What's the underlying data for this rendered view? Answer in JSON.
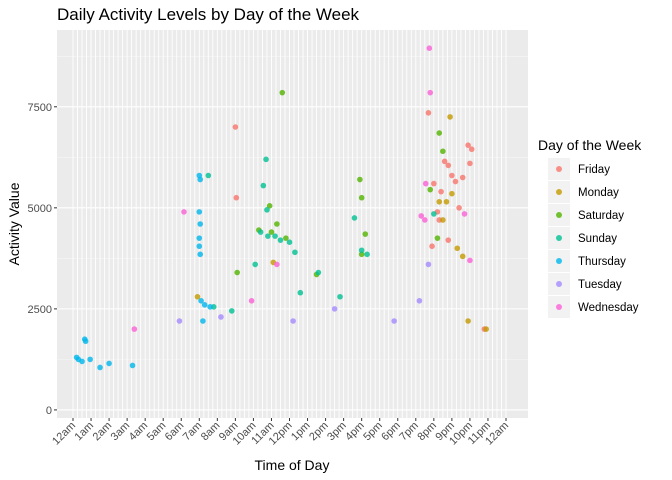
{
  "chart_data": {
    "type": "scatter",
    "title": "Daily Activity Levels by Day of the Week",
    "xlabel": "Time of Day",
    "ylabel": "Activity Value",
    "x_ticks": [
      "12am",
      "1am",
      "2am",
      "3am",
      "4am",
      "5am",
      "6am",
      "7am",
      "8am",
      "9am",
      "10am",
      "11am",
      "12pm",
      "1pm",
      "2pm",
      "3pm",
      "4pm",
      "5pm",
      "6pm",
      "7pm",
      "8pm",
      "9pm",
      "10pm",
      "11pm",
      "12am"
    ],
    "x_range_hours": [
      0,
      24
    ],
    "y_ticks": [
      0,
      2500,
      5000,
      7500
    ],
    "ylim": [
      -200,
      9400
    ],
    "grid": true,
    "legend": {
      "title": "Day of the Week",
      "position": "right",
      "entries": [
        "Friday",
        "Monday",
        "Saturday",
        "Sunday",
        "Thursday",
        "Tuesday",
        "Wednesday"
      ]
    },
    "colors": {
      "Friday": "#F8766D",
      "Monday": "#C49A00",
      "Saturday": "#53B400",
      "Sunday": "#00C094",
      "Thursday": "#00B6EB",
      "Tuesday": "#A58AFF",
      "Wednesday": "#FB61D7"
    },
    "series": [
      {
        "name": "Friday",
        "points": [
          [
            9.0,
            7000
          ],
          [
            9.05,
            5250
          ],
          [
            19.7,
            7350
          ],
          [
            20.0,
            5600
          ],
          [
            20.2,
            4900
          ],
          [
            20.4,
            5400
          ],
          [
            20.6,
            6150
          ],
          [
            20.8,
            6050
          ],
          [
            21.0,
            5800
          ],
          [
            21.2,
            5650
          ],
          [
            21.4,
            5000
          ],
          [
            21.6,
            5750
          ],
          [
            21.9,
            6550
          ],
          [
            22.0,
            6100
          ],
          [
            22.1,
            6450
          ],
          [
            20.3,
            4700
          ],
          [
            20.8,
            4200
          ],
          [
            19.9,
            4050
          ],
          [
            22.8,
            2000
          ]
        ]
      },
      {
        "name": "Monday",
        "points": [
          [
            20.9,
            7250
          ],
          [
            20.3,
            5150
          ],
          [
            20.7,
            5150
          ],
          [
            21.0,
            5350
          ],
          [
            21.3,
            4000
          ],
          [
            21.6,
            3800
          ],
          [
            20.5,
            4700
          ],
          [
            11.1,
            3650
          ],
          [
            6.9,
            2800
          ],
          [
            22.9,
            2000
          ],
          [
            21.9,
            2200
          ]
        ]
      },
      {
        "name": "Saturday",
        "points": [
          [
            11.6,
            7850
          ],
          [
            10.9,
            5050
          ],
          [
            11.3,
            4600
          ],
          [
            11.0,
            4400
          ],
          [
            15.9,
            5700
          ],
          [
            16.0,
            5250
          ],
          [
            20.3,
            6850
          ],
          [
            20.5,
            6400
          ],
          [
            20.2,
            4250
          ],
          [
            19.8,
            5450
          ],
          [
            10.3,
            4450
          ],
          [
            11.8,
            4250
          ],
          [
            16.2,
            4350
          ],
          [
            9.1,
            3400
          ],
          [
            13.5,
            3350
          ],
          [
            16.0,
            3850
          ]
        ]
      },
      {
        "name": "Sunday",
        "points": [
          [
            10.7,
            6200
          ],
          [
            10.55,
            5550
          ],
          [
            10.75,
            4950
          ],
          [
            10.8,
            4300
          ],
          [
            10.4,
            4400
          ],
          [
            11.2,
            4300
          ],
          [
            11.5,
            4200
          ],
          [
            12.0,
            4150
          ],
          [
            12.3,
            3900
          ],
          [
            10.1,
            3600
          ],
          [
            16.0,
            3950
          ],
          [
            16.3,
            3850
          ],
          [
            15.6,
            4750
          ],
          [
            20.0,
            4850
          ],
          [
            7.5,
            5800
          ],
          [
            13.6,
            3400
          ],
          [
            14.8,
            2800
          ],
          [
            7.8,
            2550
          ],
          [
            8.8,
            2450
          ],
          [
            12.6,
            2900
          ]
        ]
      },
      {
        "name": "Thursday",
        "points": [
          [
            7.0,
            5800
          ],
          [
            7.05,
            5700
          ],
          [
            7.0,
            4900
          ],
          [
            7.05,
            4600
          ],
          [
            7.0,
            4250
          ],
          [
            7.0,
            4050
          ],
          [
            7.05,
            3850
          ],
          [
            7.1,
            2700
          ],
          [
            7.3,
            2600
          ],
          [
            7.6,
            2550
          ],
          [
            7.2,
            2200
          ],
          [
            0.2,
            1300
          ],
          [
            0.3,
            1250
          ],
          [
            0.5,
            1200
          ],
          [
            0.65,
            1750
          ],
          [
            0.7,
            1700
          ],
          [
            0.95,
            1250
          ],
          [
            1.5,
            1050
          ],
          [
            2.0,
            1150
          ],
          [
            3.3,
            1100
          ]
        ]
      },
      {
        "name": "Tuesday",
        "points": [
          [
            19.7,
            3600
          ],
          [
            19.2,
            2700
          ],
          [
            12.2,
            2200
          ],
          [
            8.2,
            2300
          ],
          [
            5.9,
            2200
          ],
          [
            14.5,
            2500
          ],
          [
            17.8,
            2200
          ]
        ]
      },
      {
        "name": "Wednesday",
        "points": [
          [
            19.75,
            8950
          ],
          [
            19.8,
            7850
          ],
          [
            19.55,
            5600
          ],
          [
            19.5,
            4700
          ],
          [
            6.15,
            4900
          ],
          [
            3.4,
            2000
          ],
          [
            9.9,
            2700
          ],
          [
            21.7,
            4850
          ],
          [
            19.3,
            4800
          ],
          [
            11.3,
            3600
          ],
          [
            22.0,
            3700
          ]
        ]
      }
    ]
  }
}
